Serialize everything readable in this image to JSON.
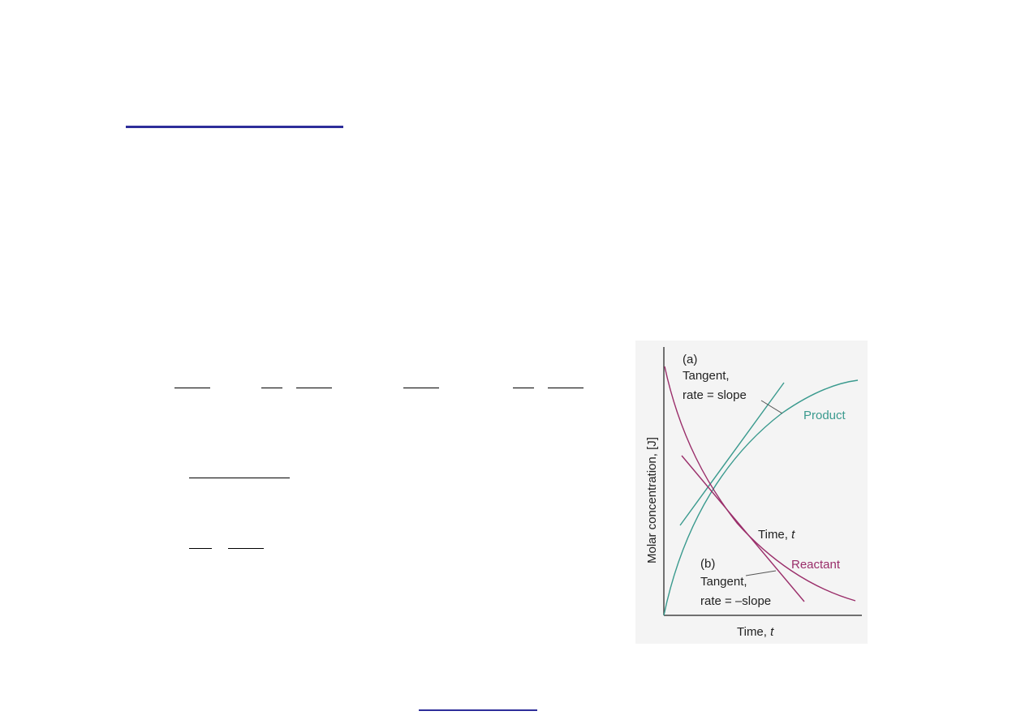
{
  "colors": {
    "accent_rule": "#2e2e9a",
    "product": "#3a9a8e",
    "reactant": "#9a2e6a",
    "text": "#222222"
  },
  "figure": {
    "panel_a_label": "(a)",
    "panel_a_tangent": "Tangent,",
    "panel_a_rate": "rate = slope",
    "panel_b_label": "(b)",
    "panel_b_tangent": "Tangent,",
    "panel_b_rate": "rate = –slope",
    "product_label": "Product",
    "reactant_label": "Reactant",
    "inner_time_prefix": "Time, ",
    "inner_time_var": "t",
    "y_axis_label": "Molar concentration, [J]",
    "x_axis_prefix": "Time, ",
    "x_axis_var": "t"
  }
}
